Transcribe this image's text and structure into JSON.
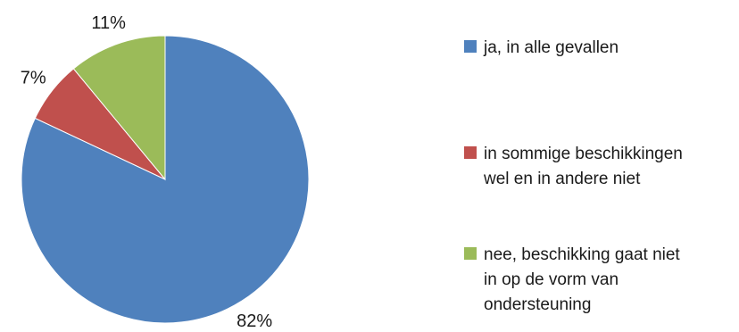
{
  "chart_data": {
    "type": "pie",
    "categories": [
      "ja, in alle gevallen",
      "in sommige beschikkingen\nwel en in andere niet",
      "nee, beschikking gaat niet\nin op de vorm van\nondersteuning"
    ],
    "values": [
      82,
      7,
      11
    ],
    "labels": [
      "82%",
      "7%",
      "11%"
    ],
    "colors": [
      "#4F81BD",
      "#C0504D",
      "#9BBB59"
    ],
    "legend_position": "right",
    "start_angle": "12 o'clock, clockwise"
  }
}
